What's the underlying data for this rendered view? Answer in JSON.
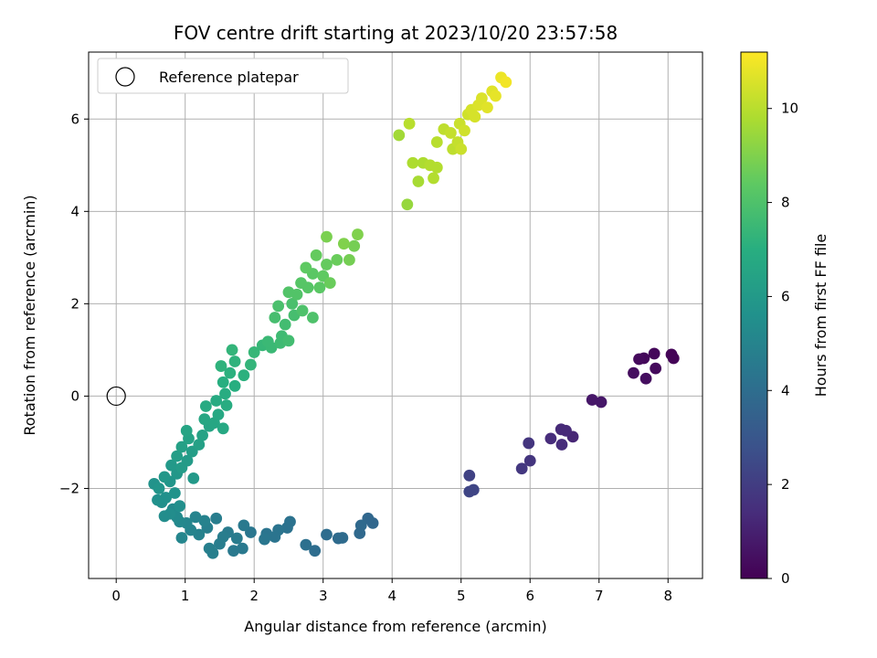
{
  "chart_data": {
    "type": "scatter",
    "title": "FOV centre drift starting at 2023/10/20 23:57:58",
    "xlabel": "Angular distance from reference (arcmin)",
    "ylabel": "Rotation from reference (arcmin)",
    "xlim": [
      -0.4,
      8.5
    ],
    "ylim": [
      -3.95,
      7.45
    ],
    "xticks": [
      0,
      1,
      2,
      3,
      4,
      5,
      6,
      7,
      8
    ],
    "yticks": [
      -2,
      0,
      2,
      4,
      6
    ],
    "grid": true,
    "legend": {
      "placement": "top-left",
      "entries": [
        "Reference platepar"
      ]
    },
    "reference_point": {
      "x": 0,
      "y": 0
    },
    "colorbar": {
      "label": "Hours from first FF file",
      "colormap": "viridis",
      "range": [
        0,
        11.2
      ],
      "ticks": [
        0,
        2,
        4,
        6,
        8,
        10
      ]
    },
    "points": [
      {
        "x": 8.05,
        "y": 0.9,
        "c": 0.1
      },
      {
        "x": 8.08,
        "y": 0.82,
        "c": 0.1
      },
      {
        "x": 7.8,
        "y": 0.92,
        "c": 0.2
      },
      {
        "x": 7.65,
        "y": 0.82,
        "c": 0.2
      },
      {
        "x": 7.58,
        "y": 0.8,
        "c": 0.3
      },
      {
        "x": 7.82,
        "y": 0.6,
        "c": 0.3
      },
      {
        "x": 7.5,
        "y": 0.5,
        "c": 0.4
      },
      {
        "x": 7.68,
        "y": 0.38,
        "c": 0.4
      },
      {
        "x": 7.03,
        "y": -0.13,
        "c": 0.7
      },
      {
        "x": 6.9,
        "y": -0.08,
        "c": 0.7
      },
      {
        "x": 6.62,
        "y": -0.88,
        "c": 1.2
      },
      {
        "x": 6.52,
        "y": -0.75,
        "c": 1.3
      },
      {
        "x": 6.45,
        "y": -0.72,
        "c": 1.3
      },
      {
        "x": 6.3,
        "y": -0.92,
        "c": 1.4
      },
      {
        "x": 6.46,
        "y": -1.05,
        "c": 1.4
      },
      {
        "x": 5.98,
        "y": -1.02,
        "c": 1.7
      },
      {
        "x": 6.0,
        "y": -1.4,
        "c": 1.7
      },
      {
        "x": 5.88,
        "y": -1.57,
        "c": 1.8
      },
      {
        "x": 5.12,
        "y": -1.72,
        "c": 2.2
      },
      {
        "x": 5.18,
        "y": -2.03,
        "c": 2.3
      },
      {
        "x": 5.12,
        "y": -2.07,
        "c": 2.3
      },
      {
        "x": 3.72,
        "y": -2.75,
        "c": 3.7
      },
      {
        "x": 3.65,
        "y": -2.65,
        "c": 3.7
      },
      {
        "x": 3.55,
        "y": -2.8,
        "c": 3.8
      },
      {
        "x": 3.53,
        "y": -2.97,
        "c": 3.8
      },
      {
        "x": 3.28,
        "y": -3.07,
        "c": 3.9
      },
      {
        "x": 3.22,
        "y": -3.08,
        "c": 3.9
      },
      {
        "x": 3.05,
        "y": -3.0,
        "c": 4.0
      },
      {
        "x": 2.88,
        "y": -3.35,
        "c": 4.0
      },
      {
        "x": 2.75,
        "y": -3.22,
        "c": 4.1
      },
      {
        "x": 2.52,
        "y": -2.72,
        "c": 4.2
      },
      {
        "x": 2.48,
        "y": -2.85,
        "c": 4.2
      },
      {
        "x": 2.35,
        "y": -2.9,
        "c": 4.3
      },
      {
        "x": 2.3,
        "y": -3.05,
        "c": 4.3
      },
      {
        "x": 2.18,
        "y": -2.98,
        "c": 4.3
      },
      {
        "x": 2.15,
        "y": -3.1,
        "c": 4.4
      },
      {
        "x": 1.95,
        "y": -2.95,
        "c": 4.4
      },
      {
        "x": 1.85,
        "y": -2.8,
        "c": 4.5
      },
      {
        "x": 1.83,
        "y": -3.3,
        "c": 4.5
      },
      {
        "x": 1.7,
        "y": -3.35,
        "c": 4.5
      },
      {
        "x": 1.75,
        "y": -3.08,
        "c": 4.6
      },
      {
        "x": 1.62,
        "y": -2.95,
        "c": 4.6
      },
      {
        "x": 1.55,
        "y": -3.05,
        "c": 4.7
      },
      {
        "x": 1.45,
        "y": -2.65,
        "c": 4.7
      },
      {
        "x": 1.5,
        "y": -3.2,
        "c": 4.7
      },
      {
        "x": 1.4,
        "y": -3.4,
        "c": 4.8
      },
      {
        "x": 1.32,
        "y": -2.85,
        "c": 4.8
      },
      {
        "x": 1.35,
        "y": -3.3,
        "c": 4.8
      },
      {
        "x": 1.28,
        "y": -2.7,
        "c": 4.9
      },
      {
        "x": 1.2,
        "y": -3.0,
        "c": 4.9
      },
      {
        "x": 1.15,
        "y": -2.62,
        "c": 5.0
      },
      {
        "x": 1.08,
        "y": -2.9,
        "c": 5.0
      },
      {
        "x": 1.02,
        "y": -2.75,
        "c": 5.1
      },
      {
        "x": 0.95,
        "y": -3.07,
        "c": 5.1
      },
      {
        "x": 0.92,
        "y": -2.72,
        "c": 5.2
      },
      {
        "x": 0.88,
        "y": -2.62,
        "c": 5.3
      },
      {
        "x": 0.82,
        "y": -2.45,
        "c": 5.3
      },
      {
        "x": 0.78,
        "y": -2.55,
        "c": 5.4
      },
      {
        "x": 0.7,
        "y": -2.6,
        "c": 5.4
      },
      {
        "x": 0.92,
        "y": -2.38,
        "c": 5.5
      },
      {
        "x": 0.66,
        "y": -2.3,
        "c": 5.5
      },
      {
        "x": 0.72,
        "y": -2.2,
        "c": 5.6
      },
      {
        "x": 0.6,
        "y": -2.25,
        "c": 5.6
      },
      {
        "x": 0.85,
        "y": -2.1,
        "c": 5.7
      },
      {
        "x": 0.55,
        "y": -1.9,
        "c": 5.7
      },
      {
        "x": 0.62,
        "y": -2.0,
        "c": 5.8
      },
      {
        "x": 0.78,
        "y": -1.85,
        "c": 5.8
      },
      {
        "x": 0.7,
        "y": -1.75,
        "c": 5.9
      },
      {
        "x": 0.88,
        "y": -1.68,
        "c": 5.9
      },
      {
        "x": 1.12,
        "y": -1.78,
        "c": 6.0
      },
      {
        "x": 0.8,
        "y": -1.5,
        "c": 6.0
      },
      {
        "x": 0.95,
        "y": -1.55,
        "c": 6.1
      },
      {
        "x": 1.03,
        "y": -1.4,
        "c": 6.1
      },
      {
        "x": 0.88,
        "y": -1.3,
        "c": 6.2
      },
      {
        "x": 1.1,
        "y": -1.2,
        "c": 6.2
      },
      {
        "x": 0.95,
        "y": -1.1,
        "c": 6.3
      },
      {
        "x": 1.2,
        "y": -1.05,
        "c": 6.3
      },
      {
        "x": 1.05,
        "y": -0.92,
        "c": 6.4
      },
      {
        "x": 1.25,
        "y": -0.85,
        "c": 6.4
      },
      {
        "x": 1.02,
        "y": -0.75,
        "c": 6.5
      },
      {
        "x": 1.35,
        "y": -0.65,
        "c": 6.5
      },
      {
        "x": 1.28,
        "y": -0.5,
        "c": 6.6
      },
      {
        "x": 1.42,
        "y": -0.58,
        "c": 6.6
      },
      {
        "x": 1.55,
        "y": -0.7,
        "c": 6.7
      },
      {
        "x": 1.48,
        "y": -0.4,
        "c": 6.7
      },
      {
        "x": 1.3,
        "y": -0.22,
        "c": 6.8
      },
      {
        "x": 1.45,
        "y": -0.1,
        "c": 6.8
      },
      {
        "x": 1.6,
        "y": -0.2,
        "c": 6.9
      },
      {
        "x": 1.58,
        "y": 0.05,
        "c": 6.9
      },
      {
        "x": 1.72,
        "y": 0.22,
        "c": 7.0
      },
      {
        "x": 1.55,
        "y": 0.3,
        "c": 7.0
      },
      {
        "x": 1.65,
        "y": 0.5,
        "c": 7.1
      },
      {
        "x": 1.85,
        "y": 0.45,
        "c": 7.1
      },
      {
        "x": 1.52,
        "y": 0.65,
        "c": 7.2
      },
      {
        "x": 1.72,
        "y": 0.75,
        "c": 7.2
      },
      {
        "x": 1.95,
        "y": 0.68,
        "c": 7.3
      },
      {
        "x": 1.68,
        "y": 1.0,
        "c": 7.3
      },
      {
        "x": 2.0,
        "y": 0.95,
        "c": 7.4
      },
      {
        "x": 2.12,
        "y": 1.1,
        "c": 7.4
      },
      {
        "x": 2.25,
        "y": 1.05,
        "c": 7.5
      },
      {
        "x": 2.2,
        "y": 1.18,
        "c": 7.5
      },
      {
        "x": 2.38,
        "y": 1.15,
        "c": 7.6
      },
      {
        "x": 2.4,
        "y": 1.3,
        "c": 7.6
      },
      {
        "x": 2.5,
        "y": 1.2,
        "c": 7.7
      },
      {
        "x": 2.45,
        "y": 1.55,
        "c": 7.7
      },
      {
        "x": 2.3,
        "y": 1.7,
        "c": 7.8
      },
      {
        "x": 2.58,
        "y": 1.75,
        "c": 7.8
      },
      {
        "x": 2.35,
        "y": 1.95,
        "c": 7.9
      },
      {
        "x": 2.55,
        "y": 2.0,
        "c": 7.9
      },
      {
        "x": 2.7,
        "y": 1.85,
        "c": 8.0
      },
      {
        "x": 2.85,
        "y": 1.7,
        "c": 8.0
      },
      {
        "x": 2.62,
        "y": 2.2,
        "c": 8.1
      },
      {
        "x": 2.5,
        "y": 2.25,
        "c": 8.1
      },
      {
        "x": 2.78,
        "y": 2.35,
        "c": 8.2
      },
      {
        "x": 2.68,
        "y": 2.45,
        "c": 8.2
      },
      {
        "x": 2.95,
        "y": 2.35,
        "c": 8.3
      },
      {
        "x": 2.85,
        "y": 2.65,
        "c": 8.3
      },
      {
        "x": 2.75,
        "y": 2.78,
        "c": 8.4
      },
      {
        "x": 3.0,
        "y": 2.6,
        "c": 8.4
      },
      {
        "x": 2.9,
        "y": 3.05,
        "c": 8.5
      },
      {
        "x": 3.05,
        "y": 2.85,
        "c": 8.5
      },
      {
        "x": 3.2,
        "y": 2.95,
        "c": 8.6
      },
      {
        "x": 3.1,
        "y": 2.45,
        "c": 8.6
      },
      {
        "x": 3.45,
        "y": 3.25,
        "c": 8.8
      },
      {
        "x": 3.38,
        "y": 2.95,
        "c": 8.8
      },
      {
        "x": 3.05,
        "y": 3.45,
        "c": 8.9
      },
      {
        "x": 3.3,
        "y": 3.3,
        "c": 9.0
      },
      {
        "x": 3.5,
        "y": 3.5,
        "c": 9.0
      },
      {
        "x": 4.22,
        "y": 4.15,
        "c": 9.4
      },
      {
        "x": 4.1,
        "y": 5.65,
        "c": 9.6
      },
      {
        "x": 4.38,
        "y": 4.65,
        "c": 9.7
      },
      {
        "x": 4.3,
        "y": 5.05,
        "c": 9.8
      },
      {
        "x": 4.45,
        "y": 5.05,
        "c": 9.8
      },
      {
        "x": 4.55,
        "y": 5.0,
        "c": 9.9
      },
      {
        "x": 4.65,
        "y": 4.95,
        "c": 9.9
      },
      {
        "x": 4.6,
        "y": 4.72,
        "c": 9.9
      },
      {
        "x": 4.25,
        "y": 5.9,
        "c": 10.0
      },
      {
        "x": 4.65,
        "y": 5.5,
        "c": 10.0
      },
      {
        "x": 4.75,
        "y": 5.78,
        "c": 10.1
      },
      {
        "x": 4.88,
        "y": 5.35,
        "c": 10.1
      },
      {
        "x": 4.95,
        "y": 5.5,
        "c": 10.2
      },
      {
        "x": 4.85,
        "y": 5.7,
        "c": 10.2
      },
      {
        "x": 5.0,
        "y": 5.35,
        "c": 10.3
      },
      {
        "x": 4.98,
        "y": 5.9,
        "c": 10.3
      },
      {
        "x": 5.05,
        "y": 5.75,
        "c": 10.4
      },
      {
        "x": 5.1,
        "y": 6.1,
        "c": 10.4
      },
      {
        "x": 5.15,
        "y": 6.2,
        "c": 10.5
      },
      {
        "x": 5.2,
        "y": 6.05,
        "c": 10.5
      },
      {
        "x": 5.25,
        "y": 6.3,
        "c": 10.6
      },
      {
        "x": 5.3,
        "y": 6.45,
        "c": 10.6
      },
      {
        "x": 5.38,
        "y": 6.25,
        "c": 10.7
      },
      {
        "x": 5.45,
        "y": 6.6,
        "c": 10.7
      },
      {
        "x": 5.5,
        "y": 6.5,
        "c": 10.8
      },
      {
        "x": 5.58,
        "y": 6.9,
        "c": 10.9
      },
      {
        "x": 5.65,
        "y": 6.8,
        "c": 11.0
      }
    ]
  }
}
